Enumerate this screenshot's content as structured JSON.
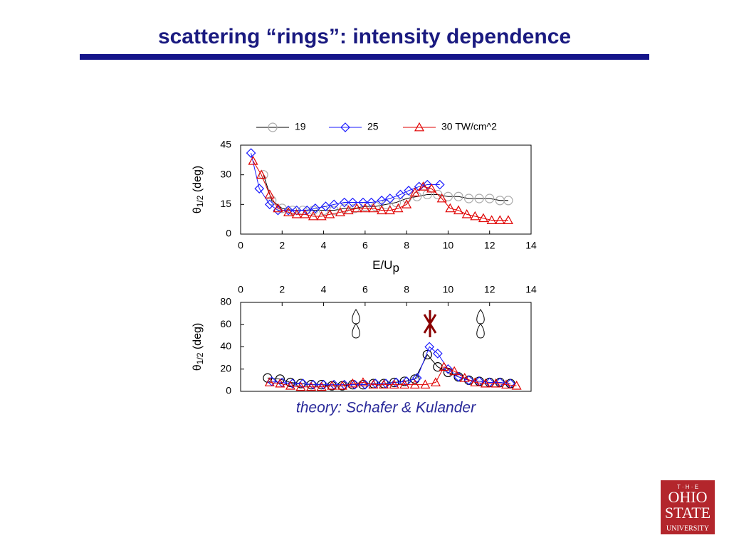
{
  "title": "scattering “rings”: intensity dependence",
  "caption": "theory: Schafer & Kulander",
  "logo": {
    "top": "T · H · E",
    "line1": "OHIO",
    "line2": "STATE",
    "line3": "UNIVERSITY"
  },
  "chart_data": [
    {
      "type": "line",
      "xlabel": [
        "E/U",
        "p"
      ],
      "ylabel": [
        "θ",
        "1/2",
        " (deg)"
      ],
      "xlim": [
        0,
        14
      ],
      "xticks": [
        0,
        2,
        4,
        6,
        8,
        10,
        12,
        14
      ],
      "ylim": [
        0,
        45
      ],
      "yticks": [
        0,
        15,
        30,
        45
      ],
      "xaxis_position": "bottom",
      "legend": "top",
      "series": [
        {
          "name": "19",
          "color": "#000000",
          "marker": "circle",
          "marker_color": "#aaaaaa",
          "x": [
            1.1,
            1.5,
            2,
            2.5,
            3,
            3.5,
            4,
            4.5,
            5,
            5.5,
            6,
            6.5,
            7,
            7.5,
            8,
            8.5,
            9,
            9.5,
            10,
            10.5,
            11,
            11.5,
            12,
            12.5,
            12.9
          ],
          "values": [
            30,
            17,
            13,
            12,
            12,
            12,
            12,
            12,
            13,
            13,
            14,
            14,
            15,
            16,
            18,
            19,
            20,
            20,
            19,
            19,
            18,
            18,
            18,
            17,
            17
          ]
        },
        {
          "name": "25",
          "color": "#1a1aff",
          "marker": "diamond",
          "marker_color": "#1a1aff",
          "x": [
            0.5,
            0.9,
            1.4,
            1.8,
            2.3,
            2.7,
            3.2,
            3.6,
            4.1,
            4.5,
            5,
            5.4,
            5.9,
            6.3,
            6.8,
            7.2,
            7.7,
            8.1,
            8.6,
            9,
            9.6
          ],
          "values": [
            41,
            23,
            15,
            12,
            12,
            12,
            12,
            13,
            14,
            15,
            16,
            16,
            16,
            16,
            17,
            18,
            20,
            22,
            24,
            25,
            25
          ]
        },
        {
          "name": "30 TW/cm^2",
          "color": "#e00000",
          "marker": "triangle",
          "marker_color": "#e00000",
          "x": [
            0.6,
            1.0,
            1.4,
            1.8,
            2.3,
            2.7,
            3.1,
            3.5,
            3.9,
            4.3,
            4.8,
            5.2,
            5.6,
            6,
            6.4,
            6.8,
            7.2,
            7.6,
            8,
            8.4,
            8.8,
            9.2,
            9.7,
            10.1,
            10.5,
            10.9,
            11.3,
            11.7,
            12.1,
            12.5,
            12.9
          ],
          "values": [
            37,
            30,
            20,
            13,
            11,
            10,
            10,
            9,
            9,
            10,
            11,
            12,
            13,
            13,
            13,
            12,
            12,
            13,
            15,
            21,
            24,
            23,
            18,
            13,
            12,
            10,
            9,
            8,
            7,
            7,
            7
          ]
        }
      ]
    },
    {
      "type": "line",
      "ylabel": [
        "θ",
        "1/2",
        " (deg)"
      ],
      "xlim": [
        0,
        14
      ],
      "xticks": [
        0,
        2,
        4,
        6,
        8,
        10,
        12,
        14
      ],
      "ylim": [
        0,
        80
      ],
      "yticks": [
        0,
        20,
        40,
        60,
        80
      ],
      "xaxis_position": "top",
      "series": [
        {
          "color": "#000000",
          "marker": "circle",
          "marker_color": "#000000",
          "x": [
            1.3,
            1.9,
            2.4,
            2.9,
            3.4,
            3.9,
            4.4,
            4.9,
            5.4,
            5.9,
            6.4,
            6.9,
            7.4,
            7.9,
            8.4,
            9.0,
            9.5,
            10,
            10.5,
            11,
            11.5,
            12,
            12.5,
            13
          ],
          "values": [
            12,
            11,
            8,
            7,
            6,
            6,
            5,
            5,
            6,
            6,
            7,
            7,
            8,
            9,
            11,
            33,
            22,
            17,
            13,
            10,
            9,
            8,
            8,
            7
          ]
        },
        {
          "color": "#1a1aff",
          "marker": "diamond",
          "marker_color": "#1a1aff",
          "x": [
            1.5,
            2,
            2.5,
            3,
            3.5,
            4,
            4.5,
            5,
            5.5,
            6,
            6.5,
            7,
            7.5,
            8,
            8.5,
            9.1,
            9.5,
            10,
            10.5,
            11,
            11.5,
            12,
            12.5,
            13
          ],
          "values": [
            9,
            8,
            7,
            7,
            6,
            6,
            6,
            6,
            6,
            6,
            7,
            7,
            8,
            9,
            12,
            40,
            34,
            20,
            13,
            10,
            9,
            8,
            8,
            7
          ]
        },
        {
          "color": "#e00000",
          "marker": "triangle",
          "marker_color": "#e00000",
          "x": [
            1.4,
            1.9,
            2.4,
            2.9,
            3.4,
            3.9,
            4.4,
            4.9,
            5.4,
            5.9,
            6.4,
            6.9,
            7.4,
            7.9,
            8.4,
            8.9,
            9.4,
            9.8,
            10.3,
            10.8,
            11.3,
            11.8,
            12.3,
            12.8,
            13.3
          ],
          "values": [
            8,
            7,
            5,
            4,
            4,
            4,
            5,
            5,
            7,
            8,
            6,
            6,
            6,
            6,
            6,
            6,
            8,
            22,
            18,
            12,
            8,
            7,
            7,
            6,
            5
          ]
        }
      ]
    }
  ]
}
